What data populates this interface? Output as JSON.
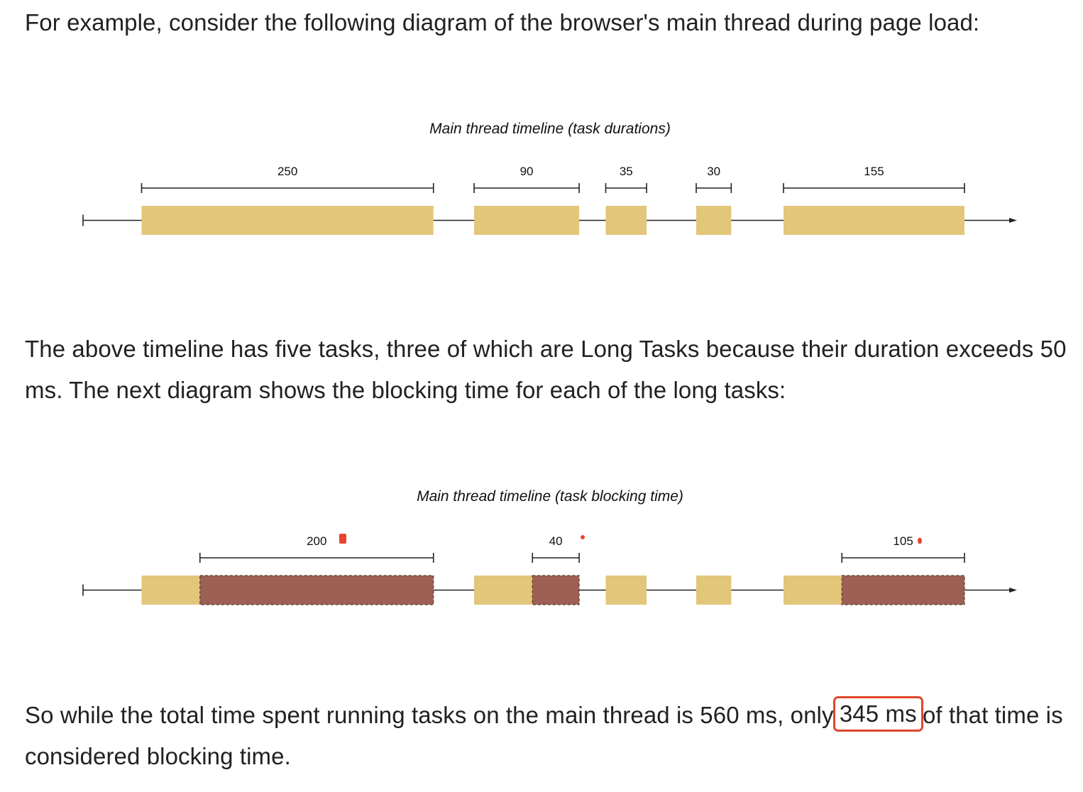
{
  "paragraphs": {
    "intro": "For example, consider the following diagram of the browser's main thread during page load:",
    "middle": "The above timeline has five tasks, three of which are Long Tasks because their duration exceeds 50 ms. The next diagram shows the blocking time for each of the long tasks:",
    "conclusion_before": "So while the total time spent running tasks on the main thread is 560 ms, only ",
    "conclusion_highlight": "345 ms",
    "conclusion_after": " of that time is considered blocking time."
  },
  "diagrams": [
    {
      "title": "Main thread timeline (task durations)",
      "tasks": [
        {
          "duration": 250,
          "label": "250"
        },
        {
          "duration": 90,
          "label": "90"
        },
        {
          "duration": 35,
          "label": "35"
        },
        {
          "duration": 30,
          "label": "30"
        },
        {
          "duration": 155,
          "label": "155"
        }
      ]
    },
    {
      "title": "Main thread timeline (task blocking time)",
      "tasks": [
        {
          "duration": 250,
          "blocking": 200,
          "label": "200"
        },
        {
          "duration": 90,
          "blocking": 40,
          "label": "40"
        },
        {
          "duration": 35,
          "blocking": 0,
          "label": ""
        },
        {
          "duration": 30,
          "blocking": 0,
          "label": ""
        },
        {
          "duration": 155,
          "blocking": 105,
          "label": "105"
        }
      ]
    }
  ],
  "colors": {
    "task": "#e2c679",
    "blocking": "#9d6054",
    "annotation_dot": "#e8452f",
    "highlight_border": "#e0462b",
    "axis": "#222222"
  }
}
